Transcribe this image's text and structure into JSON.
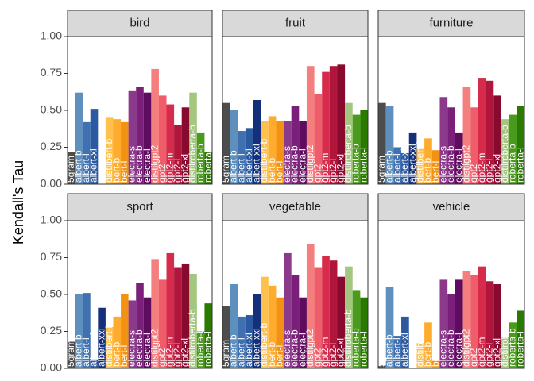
{
  "chart_data": [
    {
      "type": "bar",
      "title": "bird",
      "y_label": "Kendall's Tau",
      "ylim": [
        0,
        1
      ],
      "yticks": [
        {
          "value": 0,
          "label": "0.00"
        },
        {
          "value": 0.25,
          "label": "0.25"
        },
        {
          "value": 0.5,
          "label": "0.50"
        },
        {
          "value": 0.75,
          "label": "0.75"
        },
        {
          "value": 1,
          "label": "1.00"
        }
      ],
      "categories": [
        "5gram",
        "albert-b",
        "albert-l",
        "albert-xl",
        null,
        "distilbert-b",
        "bert-b",
        "bert-l",
        "electra-s",
        "electra-b",
        "electra-l",
        "distilgpt2",
        "gpt2",
        "gpt2-m",
        "gpt2-l",
        "gpt2-xl",
        "distilroberta-b",
        "roberta-b",
        "roberta-l"
      ],
      "values": [
        0.22,
        0.62,
        0.42,
        0.51,
        null,
        0.45,
        0.44,
        0.42,
        0.63,
        0.66,
        0.62,
        0.78,
        0.6,
        0.54,
        0.4,
        0.52,
        0.62,
        0.35,
        0.22
      ],
      "colors": [
        "#4d4d4d",
        "#5e8fbd",
        "#4170b0",
        "#2c5aa0",
        "#14307a",
        "#ffc14d",
        "#ffab2e",
        "#f39212",
        "#8b3a8b",
        "#7a1f7a",
        "#5e0c5e",
        "#f57f7f",
        "#ef5d6b",
        "#d62b4b",
        "#b0153b",
        "#880a2e",
        "#a3c77f",
        "#4a9a1e",
        "#2a7a00"
      ]
    },
    {
      "type": "bar",
      "title": "fruit",
      "ylim": [
        0,
        1
      ],
      "categories": [
        "5gram",
        "albert-b",
        "albert-l",
        "albert-xl",
        "albert-xxl",
        "distilbert-b",
        "bert-b",
        "bert-l",
        "electra-s",
        "electra-b",
        "electra-l",
        "distilgpt2",
        "gpt2",
        "gpt2-m",
        "gpt2-l",
        "gpt2-xl",
        "distilroberta-b",
        "roberta-b",
        "roberta-l"
      ],
      "values": [
        0.55,
        0.5,
        0.36,
        0.38,
        0.57,
        0.43,
        0.46,
        0.43,
        0.43,
        0.53,
        0.43,
        0.8,
        0.61,
        0.76,
        0.8,
        0.81,
        0.55,
        0.47,
        0.5
      ],
      "colors": [
        "#4d4d4d",
        "#5e8fbd",
        "#4170b0",
        "#2c5aa0",
        "#14307a",
        "#ffc14d",
        "#ffab2e",
        "#f39212",
        "#8b3a8b",
        "#7a1f7a",
        "#5e0c5e",
        "#f57f7f",
        "#ef5d6b",
        "#d62b4b",
        "#b0153b",
        "#880a2e",
        "#a3c77f",
        "#4a9a1e",
        "#2a7a00"
      ]
    },
    {
      "type": "bar",
      "title": "furniture",
      "ylim": [
        0,
        1
      ],
      "categories": [
        "5gram",
        "albert-b",
        "albert-l",
        "albert-xl",
        "albert-xxl",
        "distilbert-b",
        "bert-b",
        "bert-l",
        "electra-s",
        "electra-b",
        "electra-l",
        "distilgpt2",
        "gpt2",
        "gpt2-m",
        "gpt2-l",
        "gpt2-xl",
        "distilroberta-b",
        "roberta-b",
        "roberta-l"
      ],
      "values": [
        0.55,
        0.53,
        0.25,
        0.21,
        0.35,
        0.24,
        0.31,
        0.23,
        0.59,
        0.52,
        0.35,
        0.66,
        0.52,
        0.72,
        0.7,
        0.6,
        0.44,
        0.47,
        0.53
      ],
      "colors": [
        "#4d4d4d",
        "#5e8fbd",
        "#4170b0",
        "#2c5aa0",
        "#14307a",
        "#ffc14d",
        "#ffab2e",
        "#f39212",
        "#8b3a8b",
        "#7a1f7a",
        "#5e0c5e",
        "#f57f7f",
        "#ef5d6b",
        "#d62b4b",
        "#b0153b",
        "#880a2e",
        "#a3c77f",
        "#4a9a1e",
        "#2a7a00"
      ]
    },
    {
      "type": "bar",
      "title": "sport",
      "ylim": [
        0,
        1
      ],
      "yticks": [
        {
          "value": 0,
          "label": "0.00"
        },
        {
          "value": 0.25,
          "label": "0.25"
        },
        {
          "value": 0.5,
          "label": "0.50"
        },
        {
          "value": 0.75,
          "label": "0.75"
        },
        {
          "value": 1,
          "label": "1.00"
        }
      ],
      "categories": [
        "5gram",
        "albert-b",
        "albert-l",
        "albert-xl",
        "albert-xxl",
        "distilbert-b",
        "bert-b",
        "bert-l",
        "electra-s",
        "electra-b",
        "electra-l",
        "distilgpt2",
        "gpt2",
        "gpt2-m",
        "gpt2-l",
        "gpt2-xl",
        "distilroberta-b",
        "roberta-b",
        "roberta-l"
      ],
      "values": [
        0.18,
        0.5,
        0.51,
        0.06,
        0.41,
        0.28,
        0.35,
        0.5,
        0.46,
        0.58,
        0.48,
        0.74,
        0.6,
        0.78,
        0.68,
        0.71,
        0.64,
        0.25,
        0.44
      ],
      "colors": [
        "#4d4d4d",
        "#5e8fbd",
        "#4170b0",
        "#2c5aa0",
        "#14307a",
        "#ffc14d",
        "#ffab2e",
        "#f39212",
        "#8b3a8b",
        "#7a1f7a",
        "#5e0c5e",
        "#f57f7f",
        "#ef5d6b",
        "#d62b4b",
        "#b0153b",
        "#880a2e",
        "#a3c77f",
        "#4a9a1e",
        "#2a7a00"
      ]
    },
    {
      "type": "bar",
      "title": "vegetable",
      "ylim": [
        0,
        1
      ],
      "categories": [
        "5gram",
        "albert-b",
        "albert-l",
        "albert-xl",
        "albert-xxl",
        "distilbert-b",
        "bert-b",
        "bert-l",
        "electra-s",
        "electra-b",
        "electra-l",
        "distilgpt2",
        "gpt2",
        "gpt2-m",
        "gpt2-l",
        "gpt2-xl",
        "distilroberta-b",
        "roberta-b",
        "roberta-l"
      ],
      "values": [
        0.42,
        0.57,
        0.35,
        0.36,
        0.5,
        0.62,
        0.56,
        0.48,
        0.78,
        0.63,
        0.48,
        0.84,
        0.68,
        0.76,
        0.73,
        0.62,
        0.69,
        0.53,
        0.48
      ],
      "colors": [
        "#4d4d4d",
        "#5e8fbd",
        "#4170b0",
        "#2c5aa0",
        "#14307a",
        "#ffc14d",
        "#ffab2e",
        "#f39212",
        "#8b3a8b",
        "#7a1f7a",
        "#5e0c5e",
        "#f57f7f",
        "#ef5d6b",
        "#d62b4b",
        "#b0153b",
        "#880a2e",
        "#a3c77f",
        "#4a9a1e",
        "#2a7a00"
      ]
    },
    {
      "type": "bar",
      "title": "vehicle",
      "ylim": [
        0,
        1
      ],
      "categories": [
        "5gram",
        "albert-b",
        "albert-l",
        "albert-xl",
        null,
        "distilbert-b",
        "bert-b",
        "bert-l",
        "electra-s",
        "electra-b",
        "electra-l",
        "distilgpt2",
        "gpt2",
        "gpt2-m",
        "gpt2-l",
        "gpt2-xl",
        "distilroberta-b",
        "roberta-b",
        "roberta-l"
      ],
      "values": [
        0.02,
        0.55,
        0.22,
        0.35,
        null,
        0.17,
        0.31,
        0.05,
        0.6,
        0.5,
        0.6,
        0.66,
        0.63,
        0.69,
        0.59,
        0.57,
        0.21,
        0.31,
        0.39
      ],
      "colors": [
        "#4d4d4d",
        "#5e8fbd",
        "#4170b0",
        "#2c5aa0",
        "#14307a",
        "#ffc14d",
        "#ffab2e",
        "#f39212",
        "#8b3a8b",
        "#7a1f7a",
        "#5e0c5e",
        "#f57f7f",
        "#ef5d6b",
        "#d62b4b",
        "#b0153b",
        "#880a2e",
        "#a3c77f",
        "#4a9a1e",
        "#2a7a00"
      ]
    }
  ]
}
